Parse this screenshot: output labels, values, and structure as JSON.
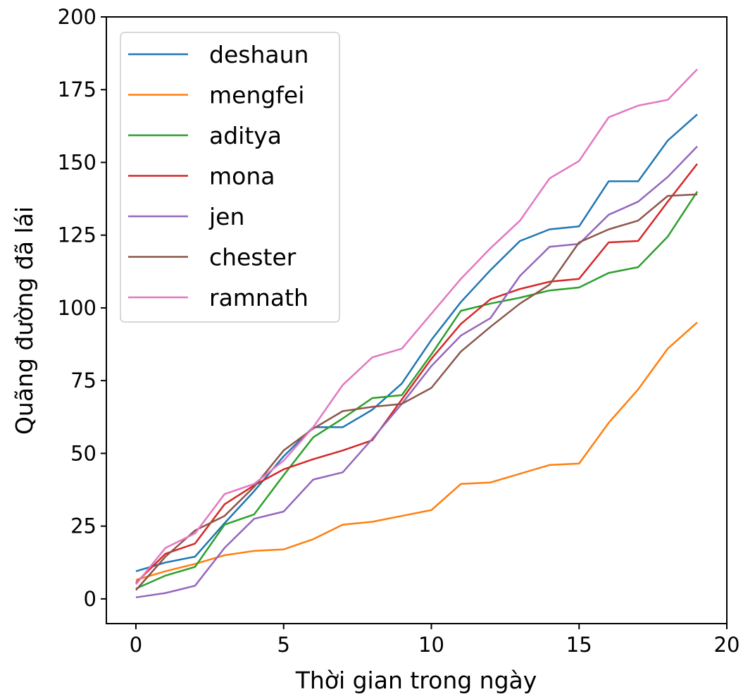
{
  "chart_data": {
    "type": "line",
    "title": "",
    "xlabel": "Thời gian trong ngày",
    "ylabel": "Quãng đường đã lái",
    "xlim": [
      -1,
      20
    ],
    "ylim": [
      -8.5,
      200
    ],
    "xticks": [
      0,
      5,
      10,
      15,
      20
    ],
    "yticks": [
      0,
      25,
      50,
      75,
      100,
      125,
      150,
      175,
      200
    ],
    "grid": false,
    "legend_position": "top-left",
    "x": [
      0,
      1,
      2,
      3,
      4,
      5,
      6,
      7,
      8,
      9,
      10,
      11,
      12,
      13,
      14,
      15,
      16,
      17,
      18,
      19
    ],
    "series": [
      {
        "name": "deshaun",
        "color": "#1f77b4",
        "values": [
          9.5,
          12.5,
          14.5,
          26,
          37,
          49,
          59,
          59,
          65,
          74,
          89,
          102,
          113,
          123,
          127,
          128,
          143.5,
          143.5,
          157.5,
          166.5
        ]
      },
      {
        "name": "mengfei",
        "color": "#ff7f0e",
        "values": [
          6.5,
          9.5,
          12,
          15,
          16.5,
          17,
          20.5,
          25.5,
          26.5,
          28.5,
          30.5,
          39.5,
          40,
          43,
          46,
          46.5,
          60.5,
          72,
          86,
          95
        ]
      },
      {
        "name": "aditya",
        "color": "#2ca02c",
        "values": [
          3.5,
          8,
          11,
          25.5,
          29,
          42.5,
          55.5,
          62,
          69,
          70,
          84,
          99,
          101.5,
          103.5,
          106,
          107,
          112,
          114,
          124.5,
          140
        ]
      },
      {
        "name": "mona",
        "color": "#d62728",
        "values": [
          5.5,
          15.5,
          19,
          32.5,
          39,
          44.5,
          48,
          51,
          54.5,
          68.5,
          82.5,
          94.5,
          103,
          106.5,
          109,
          110,
          122.5,
          123,
          136.5,
          149.5
        ]
      },
      {
        "name": "jen",
        "color": "#9467bd",
        "values": [
          0.5,
          2,
          4.5,
          17.5,
          27.5,
          30,
          41,
          43.5,
          55,
          67,
          80,
          90.5,
          96.5,
          111,
          121,
          122,
          132,
          136.5,
          145,
          155.5
        ]
      },
      {
        "name": "chester",
        "color": "#8c564b",
        "values": [
          3,
          14.5,
          23.5,
          28.5,
          38.5,
          51,
          58.5,
          64.5,
          66,
          67,
          72.5,
          85,
          93.5,
          101.5,
          108,
          122.5,
          127,
          130,
          138.5,
          139
        ]
      },
      {
        "name": "ramnath",
        "color": "#e377c2",
        "values": [
          5,
          17.5,
          22.5,
          36,
          39.5,
          47.5,
          59,
          73.5,
          83,
          86,
          98,
          110,
          120.5,
          130,
          144.5,
          150.5,
          165.5,
          169.5,
          171.5,
          182
        ]
      }
    ]
  }
}
